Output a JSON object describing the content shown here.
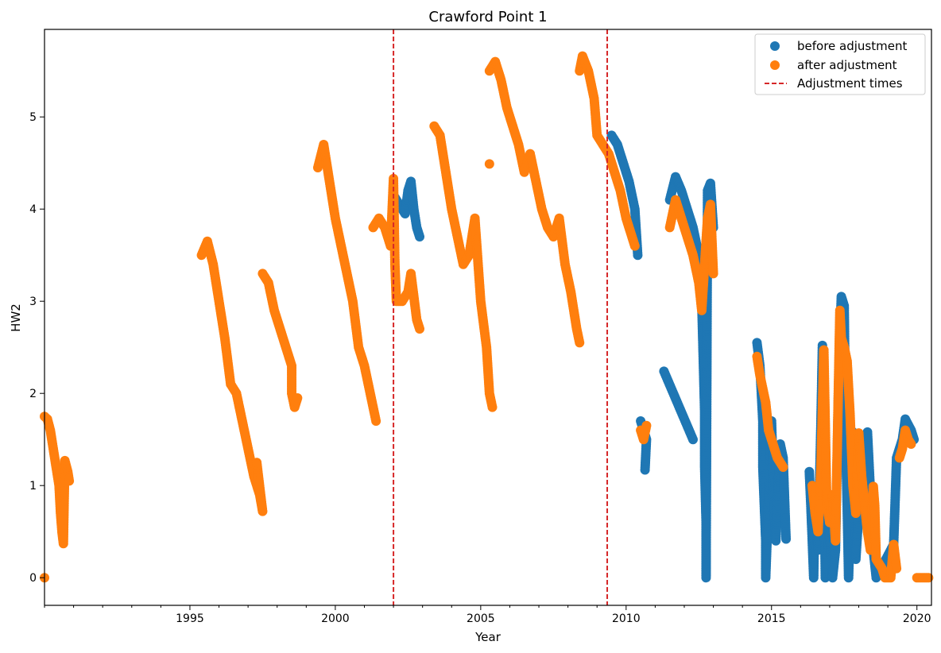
{
  "chart_data": {
    "type": "scatter",
    "title": "Crawford Point 1",
    "xlabel": "Year",
    "ylabel": "HW2",
    "xlim": [
      1990.0,
      2020.5
    ],
    "ylim": [
      -0.3,
      5.95
    ],
    "x_ticks": [
      1995,
      2000,
      2005,
      2010,
      2015,
      2020
    ],
    "y_ticks": [
      0,
      1,
      2,
      3,
      4,
      5
    ],
    "grid": false,
    "legend": "top-right",
    "colors": {
      "before": "#1f77b4",
      "after": "#ff7f0e",
      "adjustment": "#d62728"
    },
    "adjustment_times": [
      2002.0,
      2009.35
    ],
    "legend_labels": {
      "before": "before adjustment",
      "after": "after adjustment",
      "adjustment": "Adjustment times"
    },
    "series": [
      {
        "key": "before",
        "segments": [
          [
            [
              2002.0,
              4.15
            ],
            [
              2002.1,
              4.1
            ],
            [
              2002.2,
              4.05
            ],
            [
              2002.3,
              4.0
            ],
            [
              2002.4,
              3.95
            ],
            [
              2002.5,
              4.2
            ],
            [
              2002.6,
              4.3
            ],
            [
              2002.7,
              4.0
            ],
            [
              2002.8,
              3.8
            ],
            [
              2002.9,
              3.7
            ]
          ],
          [
            [
              2009.5,
              4.8
            ],
            [
              2009.7,
              4.7
            ],
            [
              2009.9,
              4.5
            ],
            [
              2010.1,
              4.3
            ],
            [
              2010.3,
              4.0
            ],
            [
              2010.4,
              3.5
            ]
          ],
          [
            [
              2010.5,
              1.7
            ],
            [
              2010.6,
              1.6
            ],
            [
              2010.7,
              1.5
            ],
            [
              2010.65,
              1.17
            ]
          ],
          [
            [
              2011.3,
              2.24
            ],
            [
              2012.3,
              1.5
            ]
          ],
          [
            [
              2011.5,
              4.1
            ],
            [
              2011.7,
              4.35
            ],
            [
              2011.9,
              4.2
            ],
            [
              2012.1,
              4.0
            ],
            [
              2012.3,
              3.8
            ],
            [
              2012.5,
              3.5
            ],
            [
              2012.6,
              3.0
            ],
            [
              2012.65,
              2.4
            ],
            [
              2012.7,
              1.8
            ],
            [
              2012.7,
              1.2
            ],
            [
              2012.75,
              0.6
            ],
            [
              2012.75,
              0.0
            ],
            [
              2012.8,
              4.2
            ],
            [
              2012.9,
              4.28
            ],
            [
              2013.0,
              3.8
            ]
          ],
          [
            [
              2014.5,
              2.55
            ],
            [
              2014.6,
              2.3
            ],
            [
              2014.7,
              1.7
            ],
            [
              2014.7,
              1.2
            ],
            [
              2014.75,
              0.8
            ],
            [
              2014.8,
              0.4
            ],
            [
              2014.8,
              0.0
            ],
            [
              2015.0,
              1.7
            ],
            [
              2015.05,
              1.2
            ],
            [
              2015.1,
              0.7
            ],
            [
              2015.15,
              0.4
            ],
            [
              2015.3,
              1.45
            ],
            [
              2015.4,
              1.3
            ],
            [
              2015.5,
              0.42
            ]
          ],
          [
            [
              2016.3,
              1.15
            ],
            [
              2016.35,
              0.8
            ],
            [
              2016.4,
              0.4
            ],
            [
              2016.45,
              0.0
            ],
            [
              2016.5,
              0.9
            ],
            [
              2016.6,
              0.3
            ],
            [
              2016.7,
              1.7
            ],
            [
              2016.75,
              2.52
            ],
            [
              2016.8,
              1.3
            ],
            [
              2016.85,
              0.0
            ],
            [
              2017.0,
              0.5
            ],
            [
              2017.1,
              0.0
            ],
            [
              2017.2,
              0.3
            ],
            [
              2017.3,
              2.0
            ],
            [
              2017.35,
              2.6
            ],
            [
              2017.4,
              3.05
            ],
            [
              2017.5,
              2.95
            ],
            [
              2017.55,
              1.5
            ],
            [
              2017.6,
              0.8
            ],
            [
              2017.65,
              0.0
            ],
            [
              2017.8,
              1.58
            ],
            [
              2017.9,
              0.2
            ],
            [
              2018.1,
              1.22
            ],
            [
              2018.3,
              1.58
            ],
            [
              2018.5,
              0.3
            ],
            [
              2018.6,
              0.0
            ],
            [
              2019.2,
              0.36
            ],
            [
              2019.3,
              1.3
            ],
            [
              2019.5,
              1.5
            ],
            [
              2019.6,
              1.72
            ],
            [
              2019.8,
              1.6
            ],
            [
              2019.9,
              1.5
            ]
          ]
        ]
      },
      {
        "key": "after",
        "segments": [
          [
            [
              1990.0,
              0.0
            ]
          ],
          [
            [
              1990.0,
              1.75
            ],
            [
              1990.1,
              1.72
            ],
            [
              1990.2,
              1.6
            ],
            [
              1990.3,
              1.4
            ],
            [
              1990.4,
              1.2
            ],
            [
              1990.5,
              1.0
            ],
            [
              1990.55,
              0.7
            ],
            [
              1990.6,
              0.5
            ],
            [
              1990.65,
              0.37
            ],
            [
              1990.7,
              1.27
            ],
            [
              1990.8,
              1.15
            ],
            [
              1990.85,
              1.05
            ]
          ],
          [
            [
              1995.4,
              3.5
            ],
            [
              1995.6,
              3.65
            ],
            [
              1995.8,
              3.4
            ],
            [
              1996.0,
              3.0
            ],
            [
              1996.2,
              2.6
            ],
            [
              1996.4,
              2.1
            ],
            [
              1996.6,
              2.0
            ],
            [
              1996.8,
              1.7
            ],
            [
              1997.0,
              1.4
            ],
            [
              1997.2,
              1.1
            ],
            [
              1997.4,
              0.9
            ],
            [
              1997.5,
              0.72
            ],
            [
              1997.3,
              1.25
            ]
          ],
          [
            [
              1997.5,
              3.3
            ],
            [
              1997.7,
              3.2
            ],
            [
              1997.9,
              2.9
            ],
            [
              1998.1,
              2.7
            ],
            [
              1998.3,
              2.5
            ],
            [
              1998.5,
              2.3
            ],
            [
              1998.5,
              2.0
            ],
            [
              1998.6,
              1.85
            ],
            [
              1998.7,
              1.95
            ]
          ],
          [
            [
              1999.4,
              4.45
            ],
            [
              1999.6,
              4.7
            ],
            [
              1999.8,
              4.3
            ],
            [
              2000.0,
              3.9
            ],
            [
              2000.2,
              3.6
            ],
            [
              2000.4,
              3.3
            ],
            [
              2000.6,
              3.0
            ],
            [
              2000.8,
              2.5
            ],
            [
              2001.0,
              2.3
            ],
            [
              2001.2,
              2.0
            ],
            [
              2001.4,
              1.7
            ]
          ],
          [
            [
              2001.3,
              3.8
            ],
            [
              2001.5,
              3.9
            ],
            [
              2001.7,
              3.8
            ],
            [
              2001.9,
              3.6
            ],
            [
              2002.0,
              4.33
            ],
            [
              2002.05,
              3.4
            ],
            [
              2002.1,
              3.0
            ],
            [
              2002.3,
              3.0
            ],
            [
              2002.5,
              3.1
            ],
            [
              2002.6,
              3.3
            ],
            [
              2002.8,
              2.8
            ],
            [
              2002.9,
              2.7
            ]
          ],
          [
            [
              2003.4,
              4.9
            ],
            [
              2003.6,
              4.8
            ],
            [
              2003.8,
              4.4
            ],
            [
              2004.0,
              4.0
            ],
            [
              2004.2,
              3.7
            ],
            [
              2004.4,
              3.4
            ],
            [
              2004.6,
              3.5
            ],
            [
              2004.8,
              3.9
            ],
            [
              2005.0,
              3.0
            ],
            [
              2005.2,
              2.5
            ],
            [
              2005.3,
              2.0
            ],
            [
              2005.4,
              1.85
            ]
          ],
          [
            [
              2005.3,
              4.49
            ]
          ],
          [
            [
              2005.3,
              5.5
            ],
            [
              2005.5,
              5.6
            ],
            [
              2005.7,
              5.4
            ],
            [
              2005.9,
              5.1
            ],
            [
              2006.1,
              4.9
            ],
            [
              2006.3,
              4.7
            ],
            [
              2006.5,
              4.4
            ],
            [
              2006.7,
              4.6
            ],
            [
              2006.9,
              4.3
            ],
            [
              2007.1,
              4.0
            ],
            [
              2007.3,
              3.8
            ],
            [
              2007.5,
              3.7
            ],
            [
              2007.7,
              3.9
            ],
            [
              2007.9,
              3.4
            ],
            [
              2008.1,
              3.1
            ],
            [
              2008.3,
              2.7
            ],
            [
              2008.4,
              2.55
            ]
          ],
          [
            [
              2008.4,
              5.5
            ],
            [
              2008.5,
              5.66
            ],
            [
              2008.7,
              5.5
            ],
            [
              2008.9,
              5.2
            ],
            [
              2009.0,
              4.8
            ],
            [
              2009.2,
              4.7
            ],
            [
              2009.4,
              4.6
            ],
            [
              2009.6,
              4.4
            ],
            [
              2009.8,
              4.2
            ],
            [
              2010.0,
              3.9
            ],
            [
              2010.2,
              3.7
            ],
            [
              2010.3,
              3.6
            ]
          ],
          [
            [
              2010.5,
              1.6
            ],
            [
              2010.6,
              1.5
            ],
            [
              2010.7,
              1.65
            ]
          ],
          [
            [
              2011.5,
              3.8
            ],
            [
              2011.7,
              4.1
            ],
            [
              2011.9,
              3.9
            ],
            [
              2012.1,
              3.7
            ],
            [
              2012.3,
              3.5
            ],
            [
              2012.5,
              3.2
            ],
            [
              2012.6,
              2.9
            ],
            [
              2012.8,
              3.9
            ],
            [
              2012.9,
              4.05
            ],
            [
              2013.0,
              3.3
            ]
          ],
          [
            [
              2014.5,
              2.4
            ],
            [
              2014.6,
              2.2
            ],
            [
              2014.8,
              1.9
            ],
            [
              2014.9,
              1.6
            ],
            [
              2015.0,
              1.5
            ],
            [
              2015.2,
              1.3
            ],
            [
              2015.4,
              1.2
            ]
          ],
          [
            [
              2016.4,
              1.0
            ],
            [
              2016.5,
              0.7
            ],
            [
              2016.6,
              0.5
            ],
            [
              2016.7,
              1.2
            ],
            [
              2016.8,
              2.47
            ],
            [
              2016.9,
              0.8
            ],
            [
              2017.0,
              0.6
            ],
            [
              2017.1,
              0.9
            ],
            [
              2017.2,
              0.4
            ],
            [
              2017.35,
              2.9
            ],
            [
              2017.4,
              2.6
            ],
            [
              2017.5,
              2.5
            ],
            [
              2017.6,
              2.35
            ],
            [
              2017.7,
              1.78
            ],
            [
              2017.8,
              1.0
            ],
            [
              2017.9,
              0.7
            ],
            [
              2018.0,
              1.57
            ],
            [
              2018.1,
              1.1
            ],
            [
              2018.2,
              0.8
            ],
            [
              2018.3,
              0.5
            ],
            [
              2018.4,
              0.3
            ],
            [
              2018.5,
              0.99
            ],
            [
              2018.55,
              0.78
            ],
            [
              2018.6,
              0.2
            ],
            [
              2018.8,
              0.1
            ],
            [
              2018.9,
              0.0
            ],
            [
              2019.1,
              0.0
            ],
            [
              2019.2,
              0.36
            ],
            [
              2019.3,
              0.1
            ]
          ],
          [
            [
              2019.4,
              1.3
            ],
            [
              2019.5,
              1.4
            ],
            [
              2019.6,
              1.6
            ],
            [
              2019.7,
              1.5
            ],
            [
              2019.8,
              1.45
            ]
          ],
          [
            [
              2020.0,
              0.0
            ],
            [
              2020.2,
              0.0
            ],
            [
              2020.4,
              0.0
            ]
          ]
        ]
      }
    ]
  }
}
